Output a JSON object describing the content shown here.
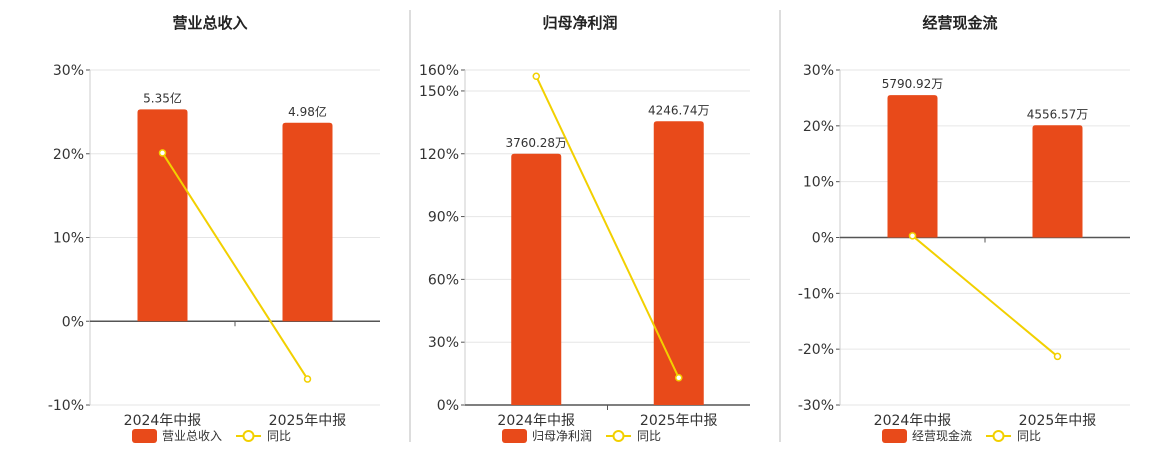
{
  "colors": {
    "bar": "#E84A1A",
    "line": "#F2D000",
    "grid": "#e6e6e6",
    "axis": "#555555",
    "divider": "#bbbbbb"
  },
  "chart_data": [
    {
      "type": "bar",
      "title": "营业总收入",
      "categories": [
        "2024年中报",
        "2025年中报"
      ],
      "yticks": [
        "-10%",
        "0%",
        "10%",
        "20%",
        "30%"
      ],
      "ylim": [
        -10,
        30
      ],
      "series": [
        {
          "name": "营业总收入",
          "type": "bar",
          "values": [
            25.3,
            23.7
          ],
          "labels": [
            "5.35亿",
            "4.98亿"
          ]
        },
        {
          "name": "同比",
          "type": "line",
          "values": [
            20.1,
            -6.9
          ]
        }
      ],
      "legend": "bottom-center"
    },
    {
      "type": "bar",
      "title": "归母净利润",
      "categories": [
        "2024年中报",
        "2025年中报"
      ],
      "yticks": [
        "0%",
        "30%",
        "60%",
        "90%",
        "120%",
        "150%",
        "160%"
      ],
      "ylim": [
        0,
        160
      ],
      "series": [
        {
          "name": "归母净利润",
          "type": "bar",
          "values": [
            120,
            135.5
          ],
          "labels": [
            "3760.28万",
            "4246.74万"
          ]
        },
        {
          "name": "同比",
          "type": "line",
          "values": [
            157,
            13
          ]
        }
      ],
      "legend": "bottom-center"
    },
    {
      "type": "bar",
      "title": "经营现金流",
      "categories": [
        "2024年中报",
        "2025年中报"
      ],
      "yticks": [
        "-30%",
        "-20%",
        "-10%",
        "0%",
        "10%",
        "20%",
        "30%"
      ],
      "ylim": [
        -30,
        30
      ],
      "series": [
        {
          "name": "经营现金流",
          "type": "bar",
          "values": [
            25.5,
            20.1
          ],
          "labels": [
            "5790.92万",
            "4556.57万"
          ]
        },
        {
          "name": "同比",
          "type": "line",
          "values": [
            0.3,
            -21.3
          ]
        }
      ],
      "legend": "bottom-center"
    }
  ]
}
